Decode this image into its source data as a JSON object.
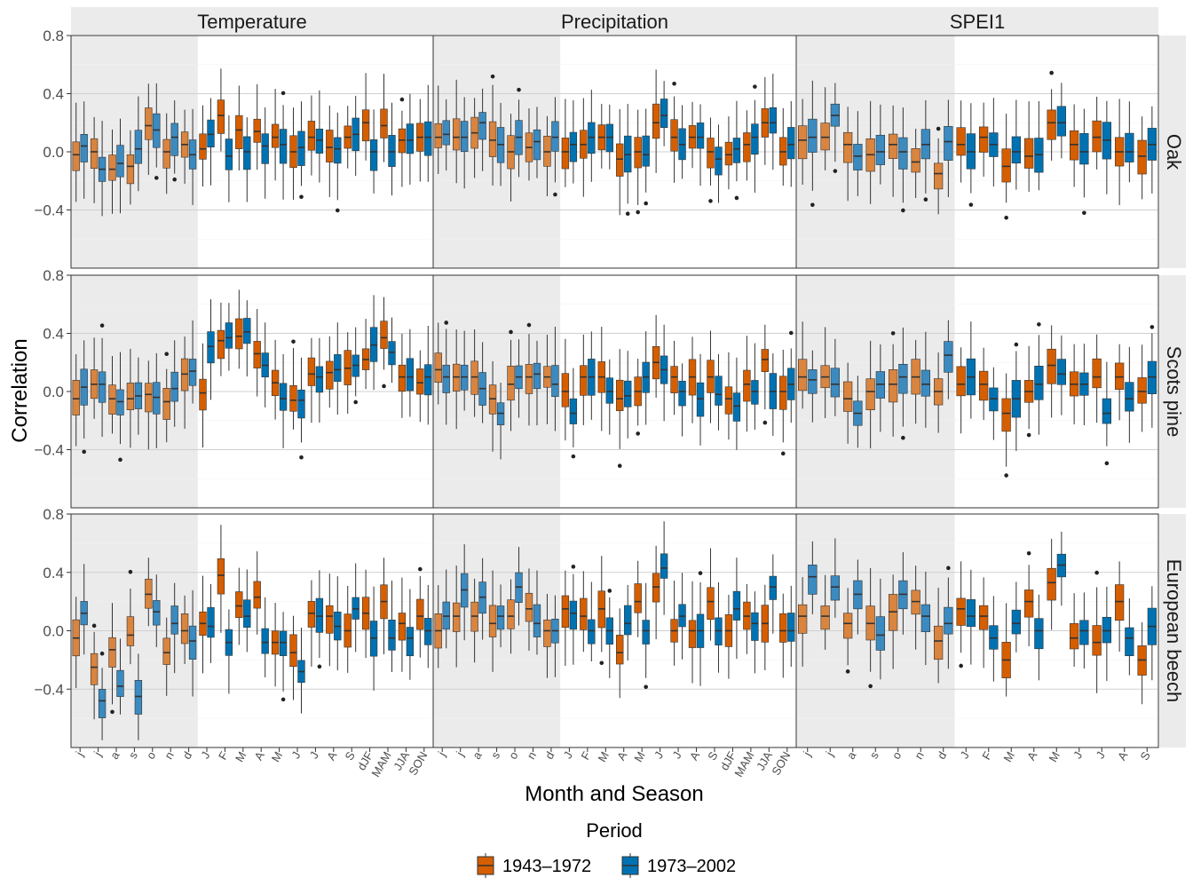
{
  "chart_data": {
    "type": "boxplot",
    "ylabel": "Correlation",
    "xlabel": "Month and Season",
    "legend": {
      "title": "Period",
      "placement": "bottom"
    },
    "ylim": [
      -0.8,
      0.8
    ],
    "y_ticks": [
      -0.4,
      0.0,
      0.4,
      0.8
    ],
    "y_tick_labels": [
      "−0.4",
      "0.0",
      "0.4",
      "0.8"
    ],
    "grid": true,
    "series": [
      {
        "name": "1943–1972",
        "color": "#d55e00"
      },
      {
        "name": "1973–2002",
        "color": "#0072b2"
      }
    ],
    "panel_columns": [
      "Temperature",
      "Precipitation",
      "SPEI1"
    ],
    "panel_rows": [
      "Oak",
      "Scots pine",
      "European beech"
    ],
    "categories": {
      "Temperature": [
        "j",
        "j",
        "a",
        "s",
        "o",
        "n",
        "d",
        "J",
        "F",
        "M",
        "A",
        "M",
        "J",
        "J",
        "A",
        "S",
        "dJF",
        "MAM",
        "JJA",
        "SON"
      ],
      "Precipitation": [
        "j",
        "j",
        "a",
        "s",
        "o",
        "n",
        "d",
        "J",
        "F",
        "M",
        "A",
        "M",
        "J",
        "J",
        "A",
        "S",
        "dJF",
        "MAM",
        "JJA",
        "SON"
      ],
      "SPEI1": [
        "j",
        "j",
        "a",
        "s",
        "o",
        "n",
        "d",
        "J",
        "F",
        "M",
        "A",
        "M",
        "J",
        "J",
        "A",
        "S"
      ]
    },
    "shaded_previous_year_categories": 7,
    "medians": {
      "Oak": {
        "Temperature": [
          [
            -0.02,
            0.04
          ],
          [
            0.0,
            -0.12
          ],
          [
            -0.12,
            -0.08
          ],
          [
            -0.1,
            0.02
          ],
          [
            0.18,
            0.15
          ],
          [
            0.0,
            0.1
          ],
          [
            0.05,
            -0.02
          ],
          [
            0.02,
            0.12
          ],
          [
            0.25,
            -0.03
          ],
          [
            0.15,
            0.0
          ],
          [
            0.14,
            0.04
          ],
          [
            0.1,
            0.05
          ],
          [
            0.0,
            0.03
          ],
          [
            0.1,
            0.08
          ],
          [
            0.03,
            0.02
          ],
          [
            0.1,
            0.12
          ],
          [
            0.2,
            0.0
          ],
          [
            0.18,
            0.0
          ],
          [
            0.08,
            0.08
          ],
          [
            0.1,
            0.1
          ]
        ],
        "Precipitation": [
          [
            0.1,
            0.12
          ],
          [
            0.1,
            0.1
          ],
          [
            0.13,
            0.2
          ],
          [
            0.08,
            0.05
          ],
          [
            0.0,
            0.1
          ],
          [
            0.03,
            0.07
          ],
          [
            0.0,
            0.1
          ],
          [
            0.0,
            0.05
          ],
          [
            0.05,
            0.1
          ],
          [
            0.1,
            0.1
          ],
          [
            -0.05,
            -0.02
          ],
          [
            0.0,
            -0.02
          ],
          [
            0.2,
            0.25
          ],
          [
            0.1,
            0.05
          ],
          [
            0.1,
            0.1
          ],
          [
            0.0,
            -0.05
          ],
          [
            -0.02,
            0.02
          ],
          [
            0.05,
            0.1
          ],
          [
            0.2,
            0.2
          ],
          [
            0.0,
            0.05
          ]
        ],
        "SPEI1": [
          [
            0.08,
            0.1
          ],
          [
            0.1,
            0.25
          ],
          [
            0.05,
            -0.03
          ],
          [
            -0.02,
            0.0
          ],
          [
            0.05,
            0.0
          ],
          [
            -0.07,
            0.05
          ],
          [
            -0.15,
            0.07
          ],
          [
            0.05,
            0.0
          ],
          [
            0.1,
            0.05
          ],
          [
            -0.1,
            0.0
          ],
          [
            -0.03,
            -0.02
          ],
          [
            0.2,
            0.2
          ],
          [
            0.05,
            0.0
          ],
          [
            0.1,
            0.08
          ],
          [
            0.0,
            0.0
          ],
          [
            -0.03,
            0.05
          ]
        ]
      },
      "Scots pine": {
        "Temperature": [
          [
            -0.05,
            0.03
          ],
          [
            0.05,
            0.05
          ],
          [
            -0.05,
            -0.07
          ],
          [
            -0.05,
            -0.03
          ],
          [
            -0.02,
            -0.04
          ],
          [
            -0.07,
            0.02
          ],
          [
            0.12,
            0.14
          ],
          [
            -0.01,
            0.31
          ],
          [
            0.35,
            0.37
          ],
          [
            0.38,
            0.41
          ],
          [
            0.26,
            0.18
          ],
          [
            0.06,
            -0.05
          ],
          [
            -0.06,
            -0.06
          ],
          [
            0.12,
            0.1
          ],
          [
            0.13,
            0.15
          ],
          [
            0.16,
            0.18
          ],
          [
            0.22,
            0.32
          ],
          [
            0.37,
            0.27
          ],
          [
            0.1,
            0.1
          ],
          [
            0.06,
            0.1
          ]
        ],
        "Precipitation": [
          [
            0.15,
            0.1
          ],
          [
            0.1,
            0.1
          ],
          [
            0.1,
            0.02
          ],
          [
            -0.05,
            -0.15
          ],
          [
            0.05,
            0.1
          ],
          [
            0.1,
            0.12
          ],
          [
            0.1,
            0.05
          ],
          [
            0.0,
            -0.15
          ],
          [
            0.1,
            0.1
          ],
          [
            0.1,
            0.0
          ],
          [
            -0.05,
            -0.03
          ],
          [
            0.0,
            0.1
          ],
          [
            0.2,
            0.15
          ],
          [
            0.1,
            0.0
          ],
          [
            0.1,
            -0.05
          ],
          [
            0.1,
            -0.02
          ],
          [
            -0.05,
            -0.1
          ],
          [
            0.05,
            0.0
          ],
          [
            0.22,
            0.0
          ],
          [
            0.0,
            0.05
          ]
        ],
        "SPEI1": [
          [
            0.1,
            0.08
          ],
          [
            0.1,
            0.05
          ],
          [
            -0.05,
            -0.15
          ],
          [
            0.0,
            0.05
          ],
          [
            0.05,
            0.1
          ],
          [
            0.1,
            0.05
          ],
          [
            0.0,
            0.25
          ],
          [
            0.05,
            0.1
          ],
          [
            0.05,
            -0.05
          ],
          [
            -0.15,
            -0.05
          ],
          [
            0.0,
            0.05
          ],
          [
            0.18,
            0.12
          ],
          [
            0.05,
            0.05
          ],
          [
            0.1,
            -0.15
          ],
          [
            0.1,
            -0.05
          ],
          [
            0.0,
            0.1
          ]
        ]
      },
      "European beech": {
        "Temperature": [
          [
            -0.05,
            0.12
          ],
          [
            -0.25,
            -0.48
          ],
          [
            -0.13,
            -0.38
          ],
          [
            -0.03,
            -0.45
          ],
          [
            0.25,
            0.13
          ],
          [
            -0.15,
            0.05
          ],
          [
            0.0,
            -0.07
          ],
          [
            0.05,
            0.03
          ],
          [
            0.38,
            -0.08
          ],
          [
            0.17,
            0.1
          ],
          [
            0.23,
            -0.08
          ],
          [
            -0.08,
            -0.08
          ],
          [
            -0.15,
            -0.28
          ],
          [
            0.12,
            0.1
          ],
          [
            0.1,
            0.03
          ],
          [
            0.0,
            0.15
          ],
          [
            0.12,
            -0.05
          ],
          [
            0.2,
            -0.05
          ],
          [
            0.05,
            -0.05
          ],
          [
            0.1,
            0.0
          ]
        ],
        "Precipitation": [
          [
            0.0,
            0.1
          ],
          [
            0.1,
            0.28
          ],
          [
            0.1,
            0.23
          ],
          [
            0.05,
            0.1
          ],
          [
            0.1,
            0.3
          ],
          [
            0.15,
            0.05
          ],
          [
            0.0,
            0.0
          ],
          [
            0.15,
            0.12
          ],
          [
            0.1,
            0.0
          ],
          [
            0.15,
            0.0
          ],
          [
            -0.15,
            0.05
          ],
          [
            0.2,
            0.0
          ],
          [
            0.3,
            0.43
          ],
          [
            0.0,
            0.1
          ],
          [
            0.0,
            0.0
          ],
          [
            0.2,
            0.0
          ],
          [
            0.0,
            0.15
          ],
          [
            0.1,
            0.05
          ],
          [
            0.05,
            0.3
          ],
          [
            0.0,
            0.0
          ]
        ],
        "SPEI1": [
          [
            0.1,
            0.37
          ],
          [
            0.1,
            0.3
          ],
          [
            0.05,
            0.25
          ],
          [
            0.05,
            -0.03
          ],
          [
            0.13,
            0.25
          ],
          [
            0.2,
            0.1
          ],
          [
            -0.07,
            0.05
          ],
          [
            0.15,
            0.1
          ],
          [
            0.1,
            -0.05
          ],
          [
            -0.2,
            0.05
          ],
          [
            0.2,
            0.0
          ],
          [
            0.33,
            0.45
          ],
          [
            -0.05,
            0.0
          ],
          [
            -0.08,
            0.0
          ],
          [
            0.2,
            -0.05
          ],
          [
            -0.2,
            0.03
          ]
        ]
      }
    }
  }
}
